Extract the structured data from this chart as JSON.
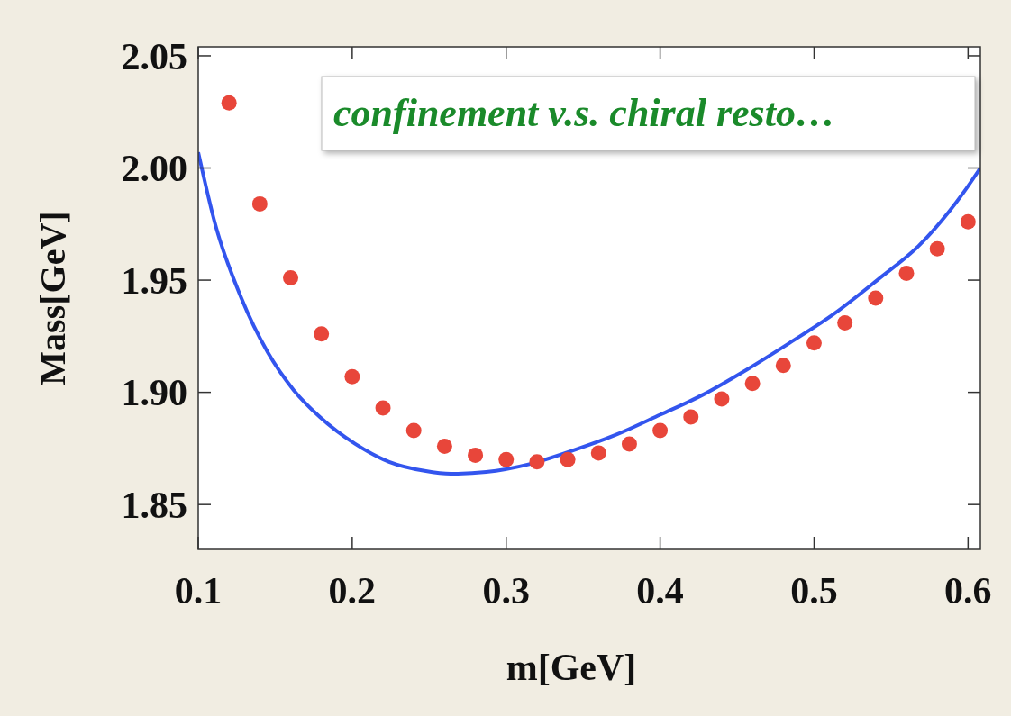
{
  "chart_data": {
    "type": "scatter",
    "xlabel": "m[GeV]",
    "ylabel": "Mass[GeV]",
    "xlim": [
      0.1,
      0.608
    ],
    "ylim": [
      1.83,
      2.054
    ],
    "xticks": [
      0.1,
      0.2,
      0.3,
      0.4,
      0.5,
      0.6
    ],
    "yticks": [
      {
        "value": 1.85,
        "label": "1.85"
      },
      {
        "value": 1.9,
        "label": "1.90"
      },
      {
        "value": 1.95,
        "label": "1.95"
      },
      {
        "value": 2.0,
        "label": "2.00"
      },
      {
        "value": 2.05,
        "label": "2.05"
      }
    ],
    "grid": false,
    "annotations": [
      "confinement v.s. chiral resto…"
    ],
    "series": [
      {
        "type": "line",
        "color": "#3355ee",
        "marker": "none",
        "x": [
          0.1,
          0.111,
          0.128,
          0.145,
          0.162,
          0.179,
          0.202,
          0.224,
          0.247,
          0.264,
          0.287,
          0.315,
          0.343,
          0.371,
          0.4,
          0.428,
          0.456,
          0.484,
          0.513,
          0.541,
          0.569,
          0.597,
          0.608
        ],
        "values": [
          2.007,
          1.975,
          1.942,
          1.918,
          1.901,
          1.889,
          1.877,
          1.869,
          1.865,
          1.8637,
          1.8645,
          1.868,
          1.874,
          1.881,
          1.89,
          1.899,
          1.91,
          1.922,
          1.935,
          1.95,
          1.966,
          1.989,
          2.0
        ]
      },
      {
        "color": "#e8463a",
        "marker": "circle",
        "x": [
          0.12,
          0.14,
          0.16,
          0.18,
          0.2,
          0.22,
          0.24,
          0.26,
          0.28,
          0.3,
          0.32,
          0.34,
          0.36,
          0.38,
          0.4,
          0.42,
          0.44,
          0.46,
          0.48,
          0.5,
          0.52,
          0.54,
          0.56,
          0.58,
          0.6
        ],
        "values": [
          2.029,
          1.984,
          1.951,
          1.926,
          1.907,
          1.893,
          1.883,
          1.876,
          1.872,
          1.87,
          1.869,
          1.87,
          1.873,
          1.877,
          1.883,
          1.889,
          1.897,
          1.904,
          1.912,
          1.922,
          1.931,
          1.942,
          1.953,
          1.964,
          1.976
        ]
      }
    ]
  }
}
